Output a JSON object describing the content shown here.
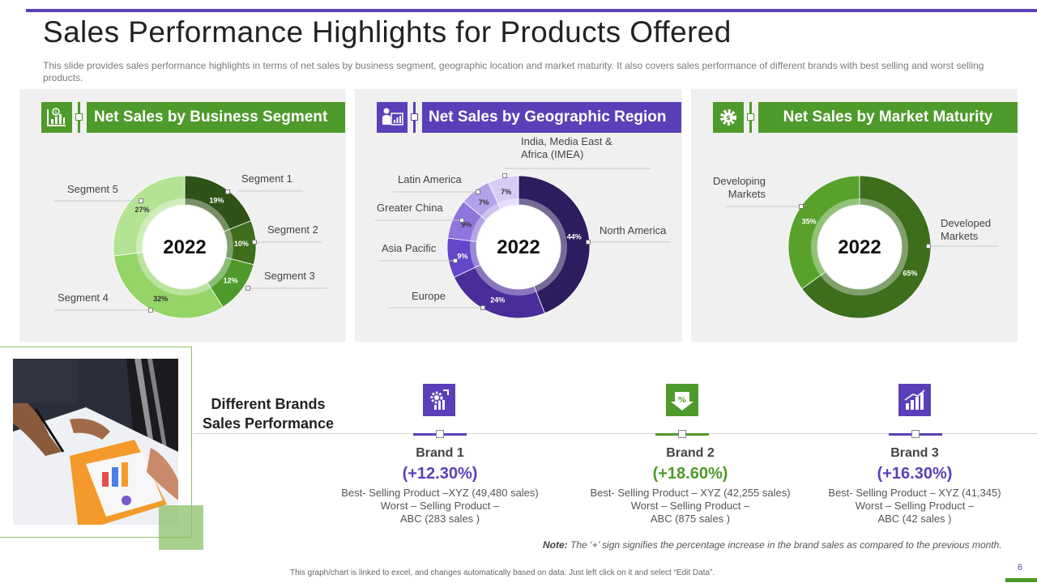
{
  "header": {
    "title": "Sales Performance Highlights for Products Offered",
    "subtitle": "This slide provides  sales performance  highlights  in terms of net sales by business  segment, geographic location and market maturity. It also covers  sales performance  of different  brands with best selling and worst selling products."
  },
  "panels": [
    {
      "title": "Net Sales by Business Segment",
      "icon": "sales-chart-icon"
    },
    {
      "title": "Net Sales by Geographic Region",
      "icon": "presenter-chart-icon"
    },
    {
      "title": "Net Sales by Market Maturity",
      "icon": "dollar-gear-icon"
    }
  ],
  "chart_data": [
    {
      "type": "pie",
      "variant": "donut",
      "title": "Net Sales by Business Segment",
      "center_label": "2022",
      "categories": [
        "Segment 1",
        "Segment 2",
        "Segment 3",
        "Segment 4",
        "Segment 5"
      ],
      "values": [
        19,
        10,
        12,
        32,
        27
      ],
      "value_labels": [
        "19%",
        "10%",
        "12%",
        "32%",
        "27%"
      ],
      "colors": [
        "#2f5216",
        "#3e6e1c",
        "#4e9a2a",
        "#95d466",
        "#b5e394"
      ]
    },
    {
      "type": "pie",
      "variant": "donut",
      "title": "Net Sales by Geographic Region",
      "center_label": "2022",
      "categories": [
        "North America",
        "Europe",
        "Asia Pacific",
        "Greater China",
        "Latin America",
        "India, Media East & Africa (IMEA)"
      ],
      "values": [
        44,
        24,
        9,
        9,
        7,
        7
      ],
      "value_labels": [
        "44%",
        "24%",
        "9%",
        "9%",
        "7%",
        "7%"
      ],
      "colors": [
        "#2d1d5e",
        "#4b2d99",
        "#6446c8",
        "#8f74dd",
        "#b3a1ea",
        "#d8ccf5"
      ]
    },
    {
      "type": "pie",
      "variant": "donut",
      "title": "Net Sales by Market Maturity",
      "center_label": "2022",
      "categories": [
        "Developed Markets",
        "Developing Markets"
      ],
      "values": [
        65,
        35
      ],
      "value_labels": [
        "65%",
        "35%"
      ],
      "colors": [
        "#3e6e1c",
        "#58a22c"
      ]
    }
  ],
  "brands": {
    "title": "Different Brands Sales Performance",
    "items": [
      {
        "name": "Brand 1",
        "pct": "(+12.30%)",
        "line1": "Best- Selling Product –XYZ   (49,480 sales)",
        "line2": "Worst – Selling Product –",
        "line3": "ABC (283 sales )",
        "color": "#5b3fb8",
        "icon": "gear-up-icon"
      },
      {
        "name": "Brand 2",
        "pct": "(+18.60%)",
        "line1": "Best- Selling Product – XYZ   (42,255 sales)",
        "line2": "Worst – Selling Product –",
        "line3": "ABC (875 sales )",
        "color": "#4e9a2a",
        "icon": "percent-down-icon"
      },
      {
        "name": "Brand 3",
        "pct": "(+16.30%)",
        "line1": "Best- Selling Product – XYZ   (41,345)",
        "line2": "Worst – Selling Product –",
        "line3": "ABC (42 sales )",
        "color": "#5b3fb8",
        "icon": "bar-growth-icon"
      }
    ]
  },
  "note": {
    "label": "Note:",
    "text": " The ‘+’ sign signifies the percentage increase in the brand sales as compared to the previous month."
  },
  "footer": "This graph/chart is linked to excel, and changes automatically based on data. Just left click on it and select “Edit Data”.",
  "page_number": "6",
  "colors": {
    "purple": "#5b3fb8",
    "green": "#4e9a2a",
    "panel_bg": "#f0f0f0"
  }
}
